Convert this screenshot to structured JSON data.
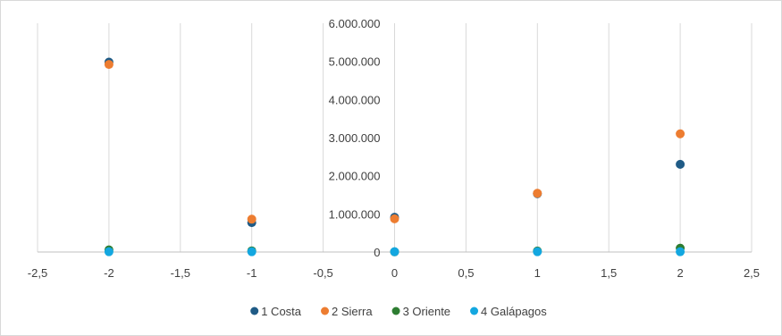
{
  "chart_data": {
    "type": "scatter",
    "title": "",
    "xlabel": "",
    "ylabel": "",
    "xlim": [
      -2.5,
      2.5
    ],
    "ylim": [
      0,
      6000000
    ],
    "x_ticks": [
      -2.5,
      -2,
      -1.5,
      -1,
      -0.5,
      0,
      0.5,
      1,
      1.5,
      2,
      2.5
    ],
    "x_tick_labels": [
      "-2,5",
      "-2",
      "-1,5",
      "-1",
      "-0,5",
      "0",
      "0,5",
      "1",
      "1,5",
      "2",
      "2,5"
    ],
    "y_ticks": [
      0,
      1000000,
      2000000,
      3000000,
      4000000,
      5000000,
      6000000
    ],
    "y_tick_labels": [
      "0",
      "1.000.000",
      "2.000.000",
      "3.000.000",
      "4.000.000",
      "5.000.000",
      "6.000.000"
    ],
    "grid": "vertical",
    "legend_position": "bottom",
    "series": [
      {
        "name": "1 Costa",
        "color": "#1f5b86",
        "points": [
          [
            -2,
            4980000
          ],
          [
            -1,
            770000
          ],
          [
            0,
            910000
          ],
          [
            1,
            1530000
          ],
          [
            2,
            2300000
          ]
        ]
      },
      {
        "name": "2 Sierra",
        "color": "#ed7d31",
        "points": [
          [
            -2,
            4920000
          ],
          [
            -1,
            860000
          ],
          [
            0,
            870000
          ],
          [
            1,
            1540000
          ],
          [
            2,
            3100000
          ]
        ]
      },
      {
        "name": "3 Oriente",
        "color": "#2e7d32",
        "points": [
          [
            -2,
            55000
          ],
          [
            -1,
            30000
          ],
          [
            0,
            5000
          ],
          [
            1,
            25000
          ],
          [
            2,
            100000
          ]
        ]
      },
      {
        "name": "4 Galápagos",
        "color": "#13a7e0",
        "points": [
          [
            -2,
            8000
          ],
          [
            -1,
            8000
          ],
          [
            0,
            8000
          ],
          [
            1,
            8000
          ],
          [
            2,
            8000
          ]
        ]
      }
    ]
  }
}
